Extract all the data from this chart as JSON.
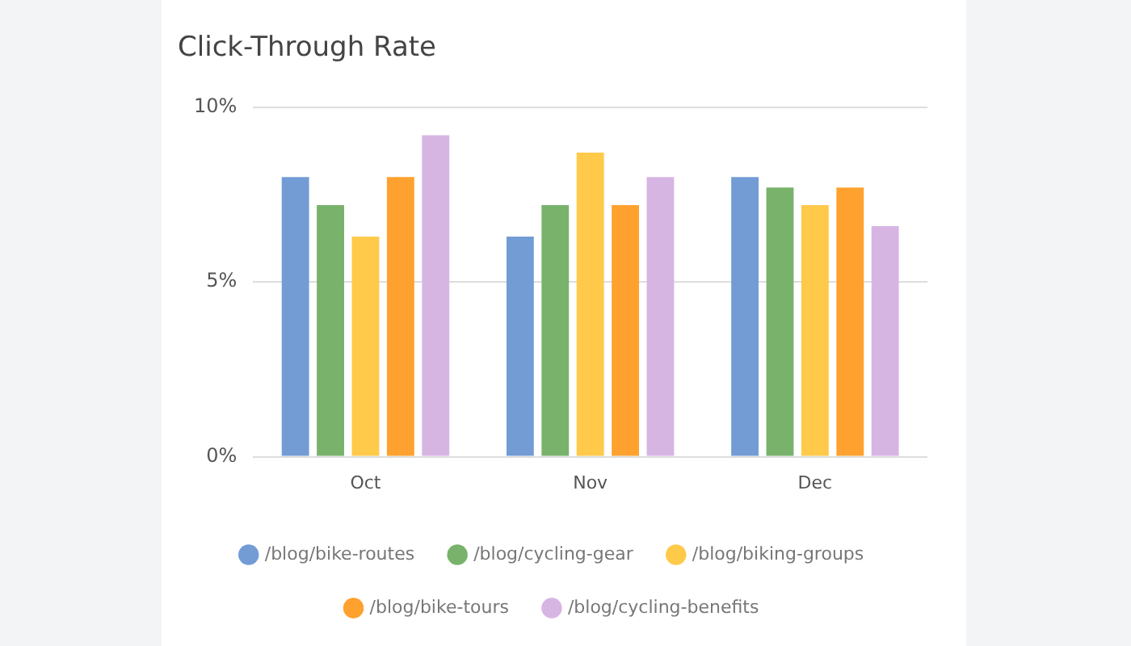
{
  "chart_data": {
    "type": "bar",
    "title": "Click-Through Rate",
    "categories": [
      "Oct",
      "Nov",
      "Dec"
    ],
    "series": [
      {
        "name": "/blog/bike-routes",
        "color": "#739cd5",
        "values": [
          8.0,
          6.3,
          8.0
        ]
      },
      {
        "name": "/blog/cycling-gear",
        "color": "#78b26b",
        "values": [
          7.2,
          7.2,
          7.7
        ]
      },
      {
        "name": "/blog/biking-groups",
        "color": "#ffc94a",
        "values": [
          6.3,
          8.7,
          7.2
        ]
      },
      {
        "name": "/blog/bike-tours",
        "color": "#ffa12e",
        "values": [
          8.0,
          7.2,
          7.7
        ]
      },
      {
        "name": "/blog/cycling-benefits",
        "color": "#d7b5e3",
        "values": [
          9.2,
          8.0,
          6.6
        ]
      }
    ],
    "ylim": [
      0,
      10
    ],
    "yticks": [
      {
        "value": 0,
        "label": "0%"
      },
      {
        "value": 5,
        "label": "5%"
      },
      {
        "value": 10,
        "label": "10%"
      }
    ],
    "grid": "y",
    "legend": "bottom"
  }
}
